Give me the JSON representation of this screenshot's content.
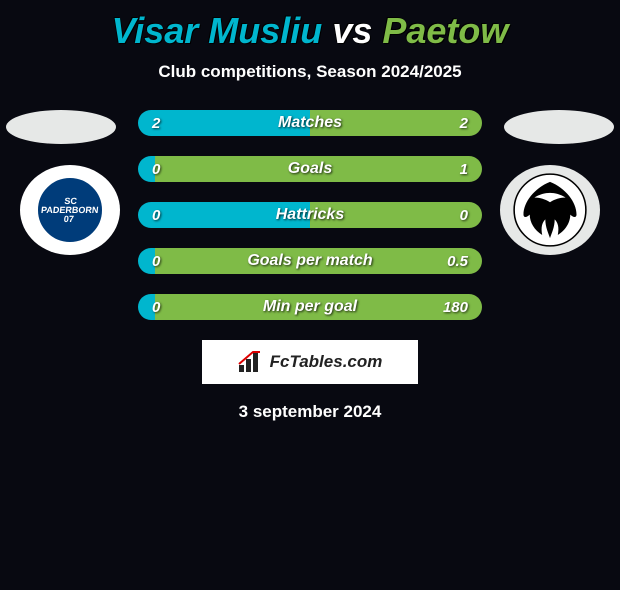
{
  "title": {
    "player1": "Visar Musliu",
    "vs": "vs",
    "player2": "Paetow",
    "color1": "#00b6ce",
    "color_vs": "#ffffff",
    "color2": "#7fbb47"
  },
  "subtitle": "Club competitions, Season 2024/2025",
  "row_colors": {
    "left_half": "#00b6ce",
    "right_half": "#7fbb47"
  },
  "rows": [
    {
      "label": "Matches",
      "left": "2",
      "right": "2",
      "split": 0.5
    },
    {
      "label": "Goals",
      "left": "0",
      "right": "1",
      "split": 0.05
    },
    {
      "label": "Hattricks",
      "left": "0",
      "right": "0",
      "split": 0.5
    },
    {
      "label": "Goals per match",
      "left": "0",
      "right": "0.5",
      "split": 0.05
    },
    {
      "label": "Min per goal",
      "left": "0",
      "right": "180",
      "split": 0.05
    }
  ],
  "club_left": {
    "name": "SC Paderborn 07",
    "badge_text": "SC\nPADERBORN\n07"
  },
  "club_right": {
    "name": "Preussen Münster"
  },
  "brand": {
    "text": "FcTables.com"
  },
  "date": "3 september 2024",
  "background": "#080911"
}
